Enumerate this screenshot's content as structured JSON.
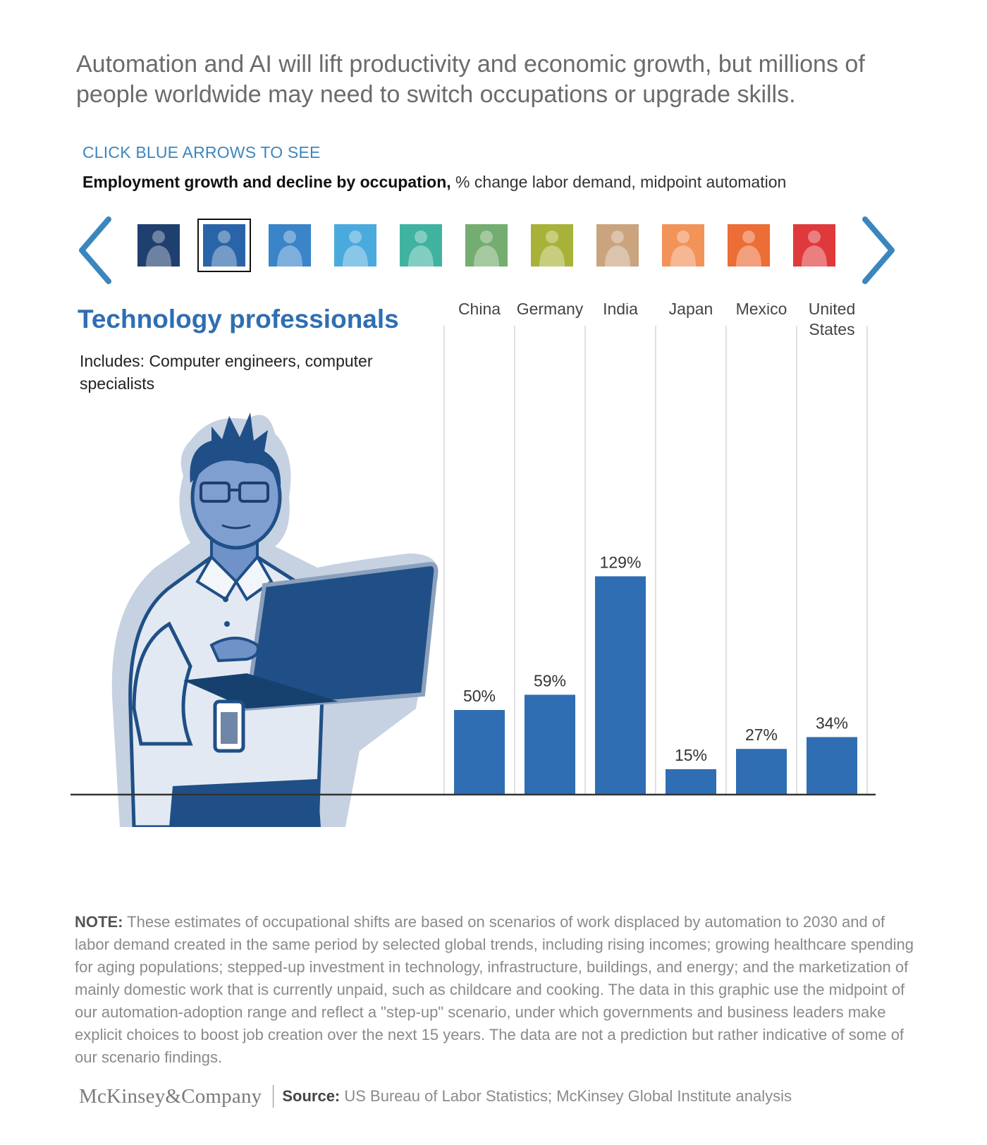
{
  "headline": "Automation and AI will lift productivity and economic growth, but millions of people worldwide may need to switch occupations or upgrade skills.",
  "cta": "CLICK BLUE ARROWS TO SEE",
  "subtitle": {
    "bold": "Employment growth and decline by occupation,",
    "rest": " % change labor demand, midpoint automation"
  },
  "carousel": {
    "prev_icon": "chevron-left-icon",
    "next_icon": "chevron-right-icon",
    "selected_index": 1,
    "thumb_colors": [
      "#1f3f6e",
      "#2a64a8",
      "#3a84c9",
      "#4aaade",
      "#3fb3a0",
      "#73ad6f",
      "#a8b238",
      "#caa47e",
      "#f2935a",
      "#ec6d35",
      "#e0393b"
    ]
  },
  "occupation": {
    "title": "Technology professionals",
    "includes": "Includes: Computer engineers, computer specialists"
  },
  "colors": {
    "bar": "#2f6eb2",
    "title": "#2f6eb2",
    "accent": "#3b86bf"
  },
  "chart_data": {
    "type": "bar",
    "categories": [
      "China",
      "Germany",
      "India",
      "Japan",
      "Mexico",
      "United States"
    ],
    "category_lines": [
      [
        "China"
      ],
      [
        "Germany"
      ],
      [
        "India"
      ],
      [
        "Japan"
      ],
      [
        "Mexico"
      ],
      [
        "United",
        "States"
      ]
    ],
    "values": [
      50,
      59,
      129,
      15,
      27,
      34
    ],
    "value_labels": [
      "50%",
      "59%",
      "129%",
      "15%",
      "27%",
      "34%"
    ],
    "title": "Employment growth and decline by occupation",
    "ylabel": "% change labor demand, midpoint automation",
    "ylim": [
      0,
      250
    ],
    "grid": false,
    "legend": "none"
  },
  "note": {
    "label": "NOTE:",
    "text": " These estimates of occupational shifts are based on scenarios of work displaced by automation to 2030 and of labor demand created in the same period by selected global trends, including rising incomes; growing healthcare spending for aging populations; stepped-up investment in technology, infrastructure, buildings, and energy; and the marketization of mainly domestic work that is currently unpaid, such as childcare and cooking. The data in this graphic use the midpoint of our automation-adoption range and reflect a \"step-up\" scenario, under which governments and business leaders make explicit choices to boost job creation over the next 15 years. The data are not a prediction but rather indicative of some of our scenario findings."
  },
  "footer": {
    "logo": "McKinsey&Company",
    "source_label": "Source:",
    "source_text": " US Bureau of Labor Statistics; McKinsey Global Institute analysis"
  }
}
